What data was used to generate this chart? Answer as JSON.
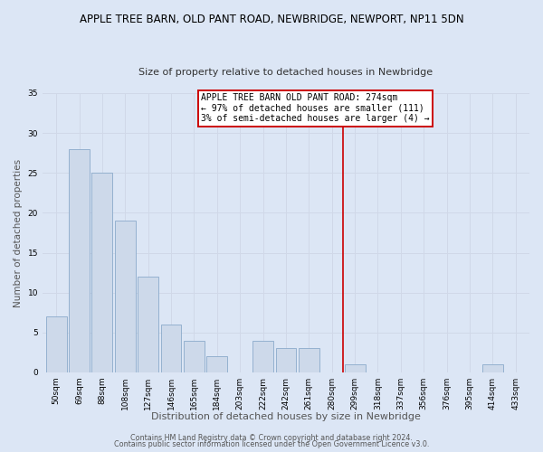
{
  "title": "APPLE TREE BARN, OLD PANT ROAD, NEWBRIDGE, NEWPORT, NP11 5DN",
  "subtitle": "Size of property relative to detached houses in Newbridge",
  "xlabel": "Distribution of detached houses by size in Newbridge",
  "ylabel": "Number of detached properties",
  "bar_labels": [
    "50sqm",
    "69sqm",
    "88sqm",
    "108sqm",
    "127sqm",
    "146sqm",
    "165sqm",
    "184sqm",
    "203sqm",
    "222sqm",
    "242sqm",
    "261sqm",
    "280sqm",
    "299sqm",
    "318sqm",
    "337sqm",
    "356sqm",
    "376sqm",
    "395sqm",
    "414sqm",
    "433sqm"
  ],
  "bar_values": [
    7,
    28,
    25,
    19,
    12,
    6,
    4,
    2,
    0,
    4,
    3,
    3,
    0,
    1,
    0,
    0,
    0,
    0,
    0,
    1,
    0
  ],
  "bar_color": "#cdd9ea",
  "bar_edge_color": "#8baacb",
  "vline_pos": 12.5,
  "vline_color": "#cc0000",
  "annotation_text": "APPLE TREE BARN OLD PANT ROAD: 274sqm\n← 97% of detached houses are smaller (111)\n3% of semi-detached houses are larger (4) →",
  "annotation_box_color": "#ffffff",
  "annotation_box_edge_color": "#cc0000",
  "ylim": [
    0,
    35
  ],
  "yticks": [
    0,
    5,
    10,
    15,
    20,
    25,
    30,
    35
  ],
  "grid_color": "#d0d8e8",
  "bg_color": "#dce6f5",
  "footer_line1": "Contains HM Land Registry data © Crown copyright and database right 2024.",
  "footer_line2": "Contains public sector information licensed under the Open Government Licence v3.0.",
  "title_fontsize": 8.5,
  "subtitle_fontsize": 8.0,
  "xlabel_fontsize": 8.0,
  "ylabel_fontsize": 7.5,
  "tick_fontsize": 6.5,
  "annot_fontsize": 7.0,
  "footer_fontsize": 5.8
}
